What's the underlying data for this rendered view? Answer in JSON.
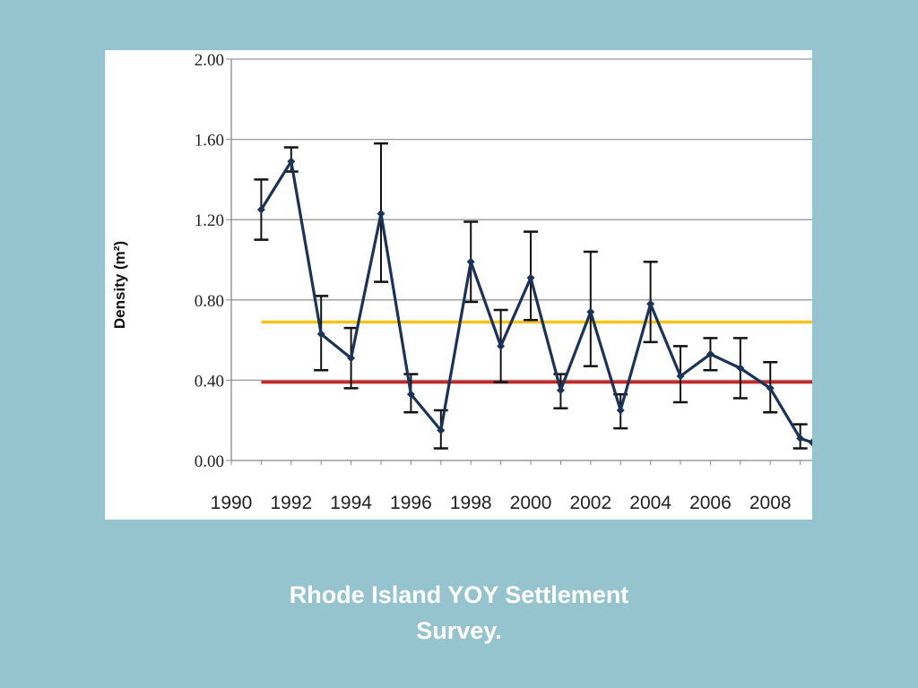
{
  "caption": {
    "line1": "Rhode Island YOY Settlement",
    "line2": "Survey."
  },
  "chart_data": {
    "type": "line",
    "title": "",
    "xlabel": "",
    "ylabel": "Density (m²)",
    "ylim": [
      0,
      2.0
    ],
    "yticks": [
      "0.00",
      "0.40",
      "0.80",
      "1.20",
      "1.60",
      "2.00"
    ],
    "xlim": [
      1990,
      2009
    ],
    "xticks": [
      "1990",
      "1992",
      "1994",
      "1996",
      "1998",
      "2000",
      "2002",
      "2004",
      "2006",
      "2008"
    ],
    "grid": "horizontal",
    "series": [
      {
        "color": "#1b3358",
        "x": [
          1991,
          1992,
          1993,
          1994,
          1995,
          1996,
          1997,
          1998,
          1999,
          2000,
          2001,
          2002,
          2003,
          2004,
          2005,
          2006,
          2007,
          2008,
          2009,
          2009.4
        ],
        "values": [
          1.25,
          1.49,
          0.63,
          0.51,
          1.23,
          0.33,
          0.15,
          0.99,
          0.57,
          0.91,
          0.35,
          0.74,
          0.25,
          0.78,
          0.42,
          0.53,
          0.46,
          0.36,
          0.11,
          0.09
        ],
        "err_low": [
          1.1,
          1.44,
          0.45,
          0.36,
          0.89,
          0.24,
          0.06,
          0.79,
          0.39,
          0.7,
          0.26,
          0.47,
          0.16,
          0.59,
          0.29,
          0.45,
          0.31,
          0.24,
          0.06,
          null
        ],
        "err_high": [
          1.4,
          1.56,
          0.82,
          0.66,
          1.58,
          0.43,
          0.25,
          1.19,
          0.75,
          1.14,
          0.43,
          1.04,
          0.33,
          0.99,
          0.57,
          0.61,
          0.61,
          0.49,
          0.18,
          null
        ]
      }
    ],
    "reference_lines": [
      {
        "color": "#f5c31a",
        "y": 0.69
      },
      {
        "color": "#c62828",
        "y": 0.39
      }
    ]
  }
}
